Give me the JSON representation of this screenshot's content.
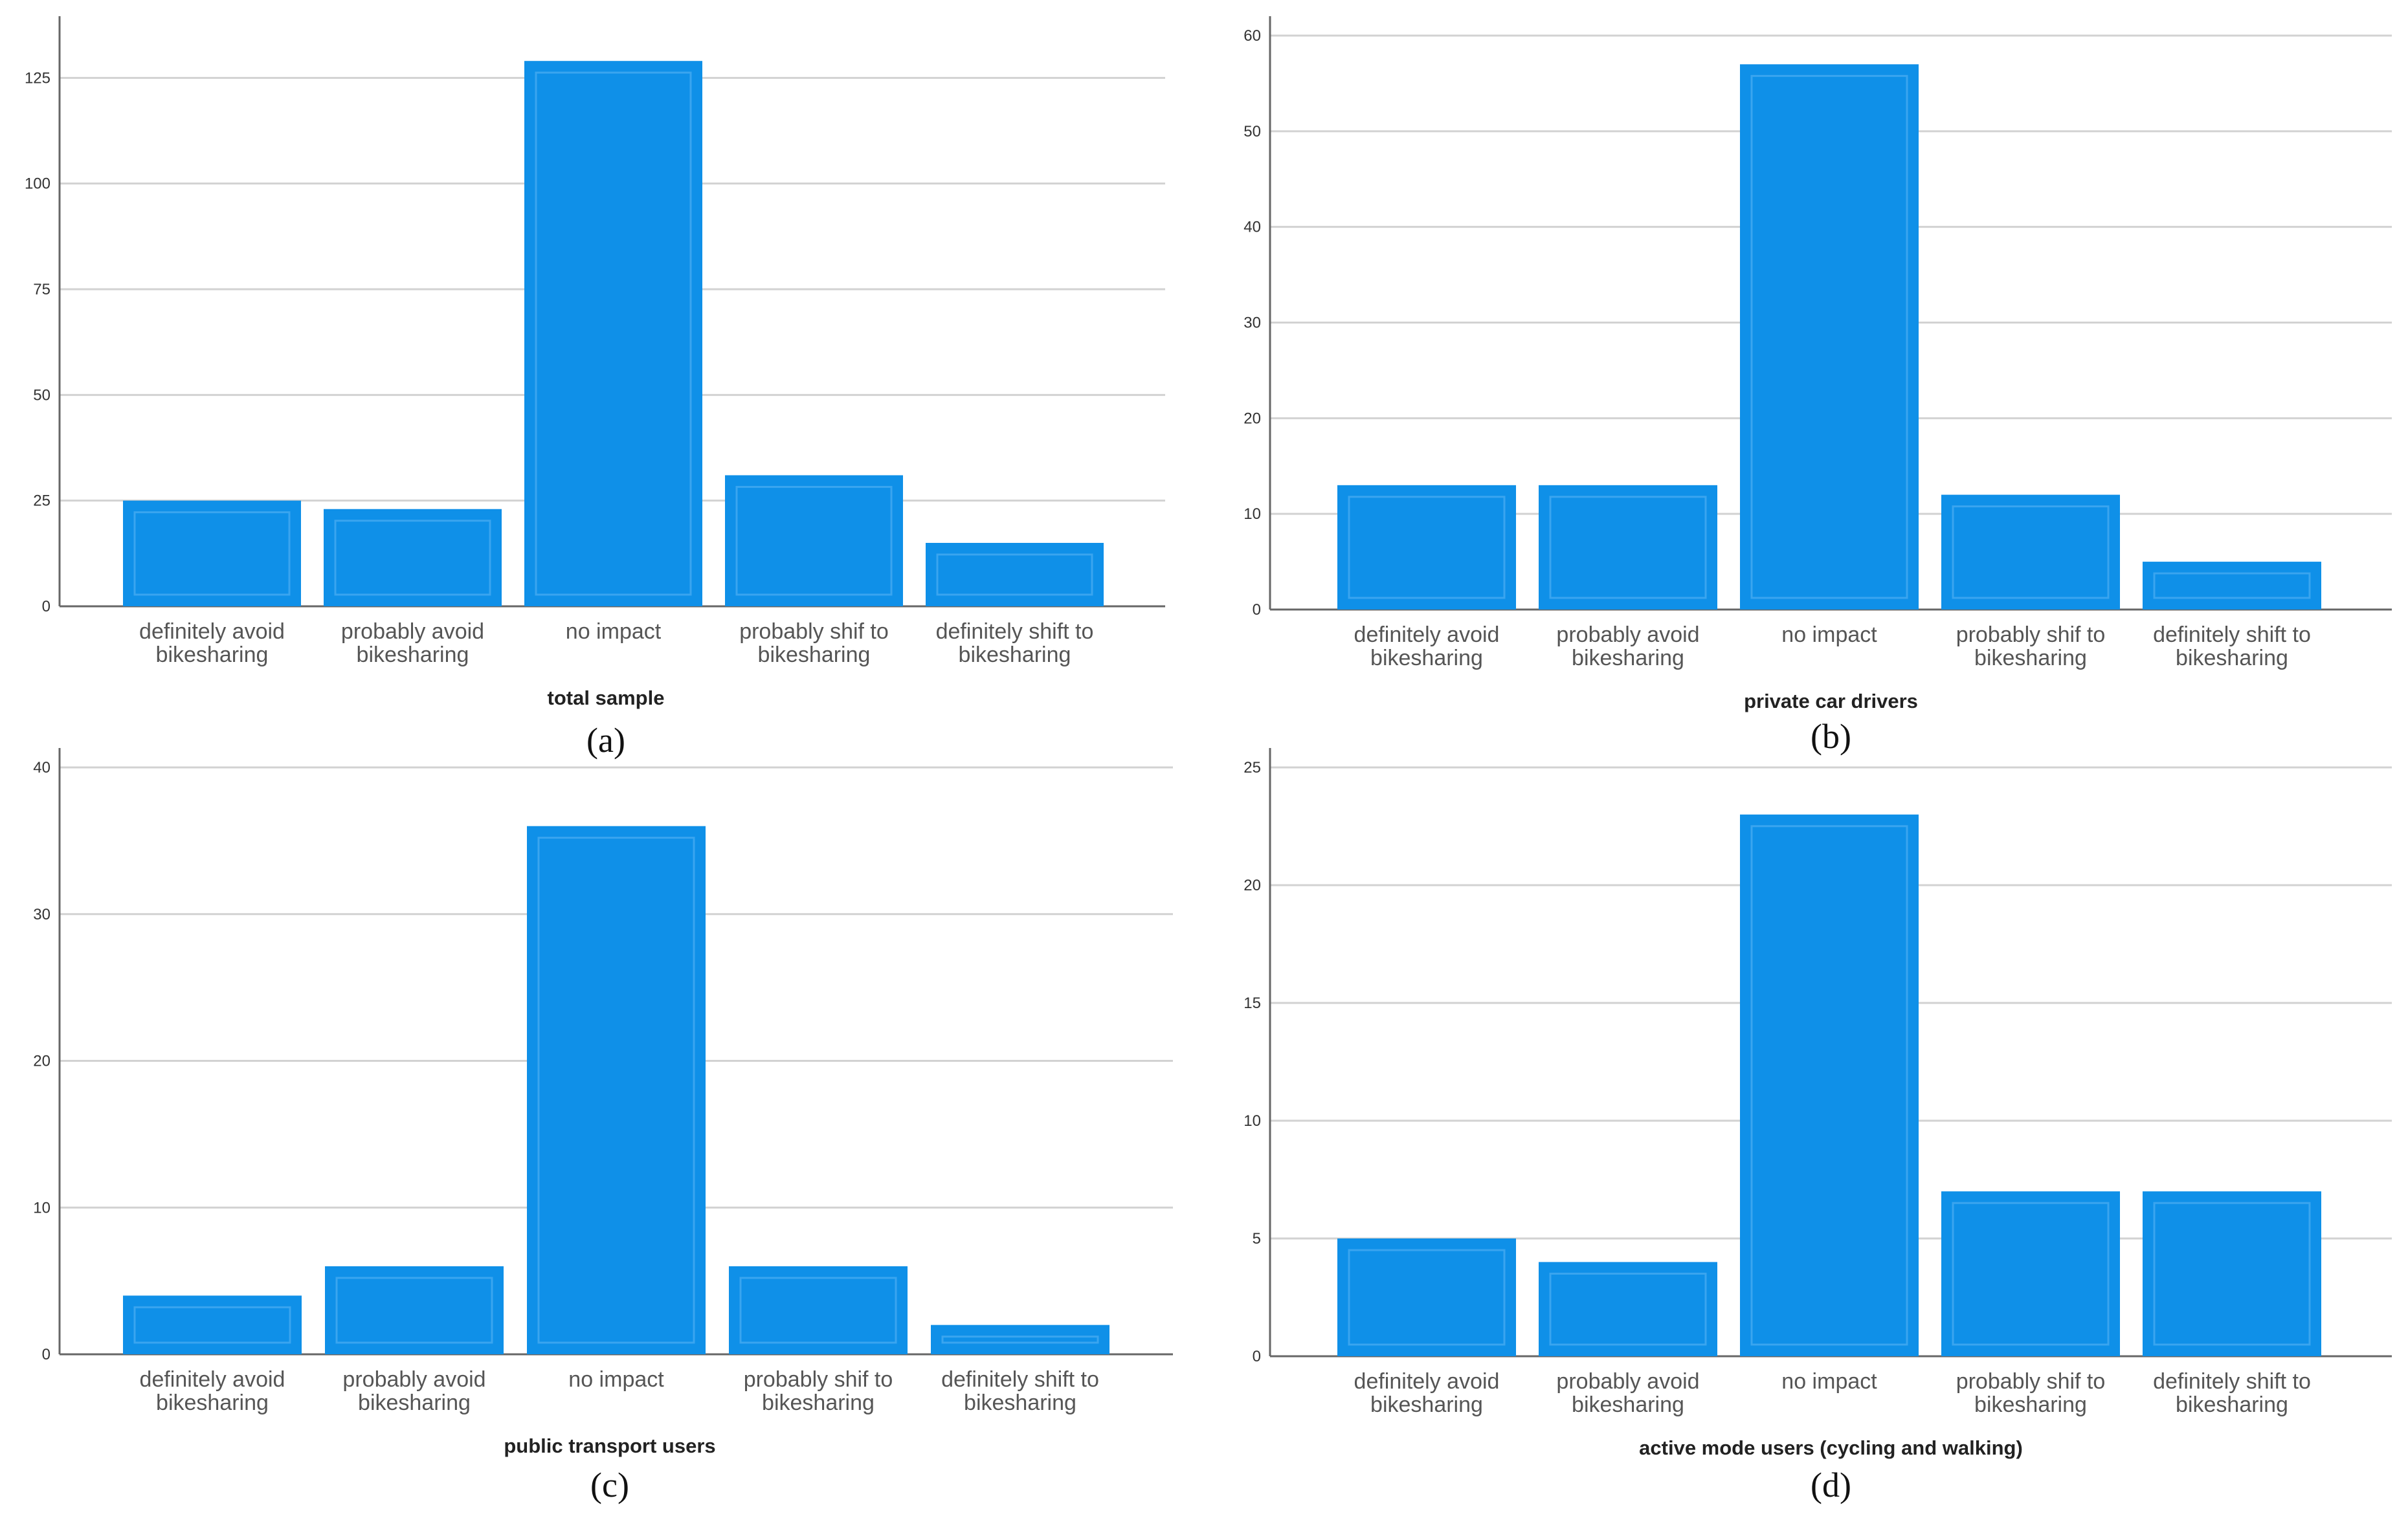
{
  "colors": {
    "bar": "#0f90e8",
    "bar_inner": "#3aa5ef",
    "grid": "#d2d2d2",
    "axis": "#666666"
  },
  "chart_data": [
    {
      "type": "bar",
      "panel": "(a)",
      "xlabel": "total sample",
      "ylabel": "",
      "categories": [
        [
          "definitely avoid",
          "bikesharing"
        ],
        [
          "probably avoid",
          "bikesharing"
        ],
        [
          "no impact"
        ],
        [
          "probably shif to",
          "bikesharing"
        ],
        [
          "definitely shift to",
          "bikesharing"
        ]
      ],
      "values": [
        25,
        23,
        129,
        31,
        15
      ],
      "ylim": [
        0,
        135
      ],
      "yticks": [
        0,
        25,
        50,
        75,
        100,
        125
      ]
    },
    {
      "type": "bar",
      "panel": "(b)",
      "xlabel": "private car drivers",
      "ylabel": "",
      "categories": [
        [
          "definitely avoid",
          "bikesharing"
        ],
        [
          "probably avoid",
          "bikesharing"
        ],
        [
          "no impact"
        ],
        [
          "probably shif to",
          "bikesharing"
        ],
        [
          "definitely shift to",
          "bikesharing"
        ]
      ],
      "values": [
        13,
        13,
        57,
        12,
        5
      ],
      "ylim": [
        0,
        60
      ],
      "yticks": [
        0,
        10,
        20,
        30,
        40,
        50,
        60
      ]
    },
    {
      "type": "bar",
      "panel": "(c)",
      "xlabel": "public transport users",
      "ylabel": "",
      "categories": [
        [
          "definitely avoid",
          "bikesharing"
        ],
        [
          "probably avoid",
          "bikesharing"
        ],
        [
          "no impact"
        ],
        [
          "probably shif to",
          "bikesharing"
        ],
        [
          "definitely shift to",
          "bikesharing"
        ]
      ],
      "values": [
        4,
        6,
        36,
        6,
        2
      ],
      "ylim": [
        0,
        40
      ],
      "yticks": [
        0,
        10,
        20,
        30,
        40
      ]
    },
    {
      "type": "bar",
      "panel": "(d)",
      "xlabel": "active mode users (cycling and walking)",
      "ylabel": "",
      "categories": [
        [
          "definitely avoid",
          "bikesharing"
        ],
        [
          "probably avoid",
          "bikesharing"
        ],
        [
          "no impact"
        ],
        [
          "probably shif to",
          "bikesharing"
        ],
        [
          "definitely shift to",
          "bikesharing"
        ]
      ],
      "values": [
        5,
        4,
        23,
        7,
        7
      ],
      "ylim": [
        0,
        25
      ],
      "yticks": [
        0,
        5,
        10,
        15,
        20,
        25
      ]
    }
  ]
}
